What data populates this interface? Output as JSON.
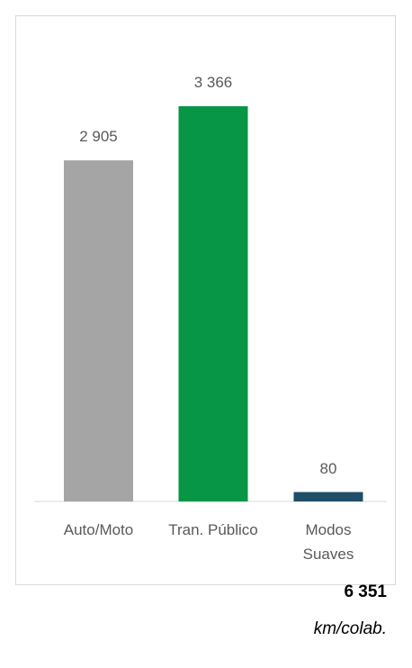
{
  "chart_data": {
    "type": "bar",
    "categories": [
      "Auto/Moto",
      "Tran. Público",
      "Modos Suaves"
    ],
    "values": [
      2905,
      3366,
      80
    ],
    "value_labels": [
      "2 905",
      "3 366",
      "80"
    ],
    "colors": [
      "#a5a5a5",
      "#069645",
      "#1f4e69"
    ],
    "annotations": [
      "6 351",
      "km/colab."
    ]
  }
}
